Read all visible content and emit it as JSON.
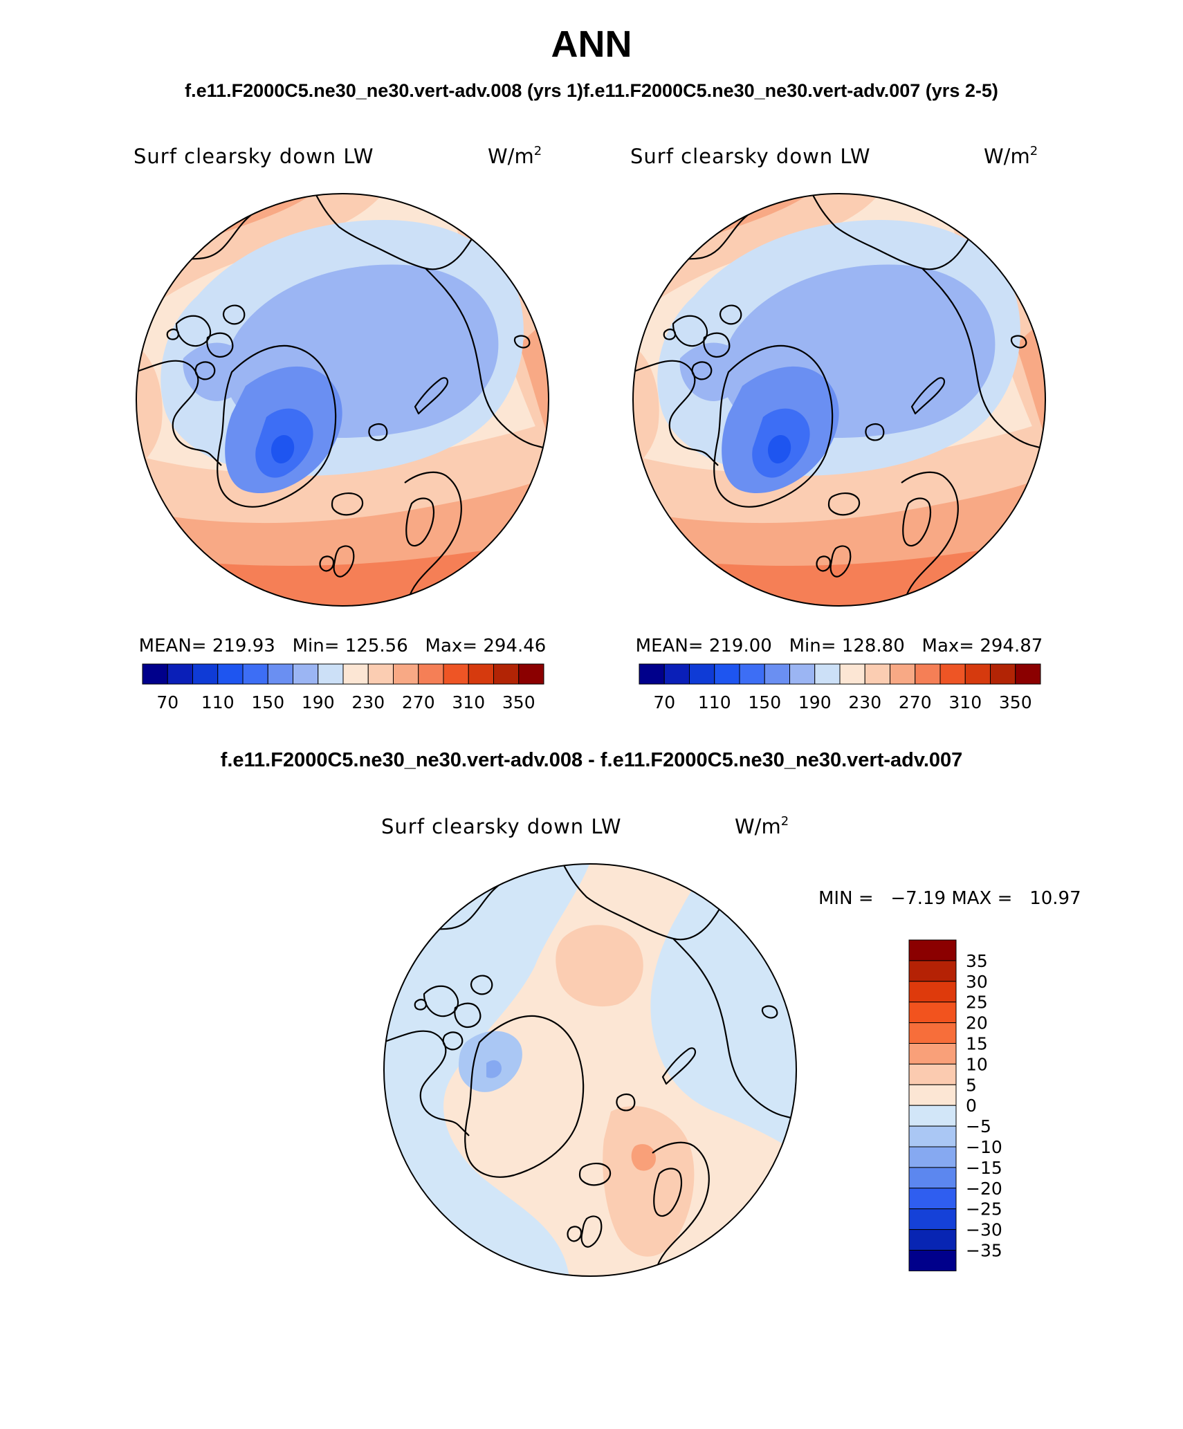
{
  "title": "ANN",
  "subtitle": "f.e11.F2000C5.ne30_ne30.vert-adv.008 (yrs 1)f.e11.F2000C5.ne30_ne30.vert-adv.007 (yrs 2-5)",
  "diff_title": "f.e11.F2000C5.ne30_ne30.vert-adv.008 - f.e11.F2000C5.ne30_ne30.vert-adv.007",
  "panels": [
    {
      "field": "Surf clearsky down LW",
      "units": "W/m",
      "units_exp": "2",
      "stats": "MEAN= 219.93   Min= 125.56   Max= 294.46"
    },
    {
      "field": "Surf clearsky down LW",
      "units": "W/m",
      "units_exp": "2",
      "stats": "MEAN= 219.00   Min= 128.80   Max= 294.87"
    },
    {
      "field": "Surf clearsky down LW",
      "units": "W/m",
      "units_exp": "2",
      "stats": "MIN =   −7.19 MAX =   10.97"
    }
  ],
  "abs_colorbar": {
    "colors": [
      "#00008b",
      "#0a1fb8",
      "#0f3bd6",
      "#1e55f0",
      "#3d6ef5",
      "#6a8ff2",
      "#9bb5f3",
      "#cce0f7",
      "#fce6d4",
      "#fbcdb2",
      "#f8a985",
      "#f57f56",
      "#ee5525",
      "#d63a0e",
      "#b22405",
      "#8b0000"
    ],
    "labels": [
      "70",
      "110",
      "150",
      "190",
      "230",
      "270",
      "310",
      "350"
    ]
  },
  "diff_colorbar": {
    "colors": [
      "#8b0000",
      "#b52205",
      "#de3a0c",
      "#f2531e",
      "#f76e3a",
      "#f9a079",
      "#fbcbb0",
      "#fce6d4",
      "#d2e6f8",
      "#aac7f4",
      "#86a9f1",
      "#5c87ef",
      "#2f5ef0",
      "#1541d8",
      "#0825b3",
      "#00008b"
    ],
    "labels": [
      "35",
      "30",
      "25",
      "20",
      "15",
      "10",
      "5",
      "0",
      "−5",
      "−10",
      "−15",
      "−20",
      "−25",
      "−30",
      "−35"
    ]
  },
  "map_data": {
    "projection": "north polar stereographic",
    "field": "Surf clearsky down LW",
    "units": "W/m2",
    "panel1": {
      "mean": 219.93,
      "min": 125.56,
      "max": 294.46
    },
    "panel2": {
      "mean": 219.0,
      "min": 128.8,
      "max": 294.87
    },
    "difference": {
      "min": -7.19,
      "max": 10.97
    }
  }
}
